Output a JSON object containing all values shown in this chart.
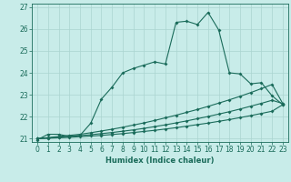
{
  "xlabel": "Humidex (Indice chaleur)",
  "background_color": "#c8ece9",
  "grid_color": "#aad4d0",
  "line_color": "#1a6b5a",
  "xlim": [
    -0.5,
    23.5
  ],
  "ylim": [
    20.85,
    27.15
  ],
  "yticks": [
    21,
    22,
    23,
    24,
    25,
    26,
    27
  ],
  "xticks": [
    0,
    1,
    2,
    3,
    4,
    5,
    6,
    7,
    8,
    9,
    10,
    11,
    12,
    13,
    14,
    15,
    16,
    17,
    18,
    19,
    20,
    21,
    22,
    23
  ],
  "series1_x": [
    0,
    1,
    2,
    3,
    4,
    5,
    6,
    7,
    8,
    9,
    10,
    11,
    12,
    13,
    14,
    15,
    16,
    17,
    18,
    19,
    20,
    21,
    22,
    23
  ],
  "series1_y": [
    20.95,
    21.2,
    21.2,
    21.1,
    21.15,
    21.7,
    22.8,
    23.35,
    24.0,
    24.2,
    24.35,
    24.5,
    24.4,
    26.3,
    26.35,
    26.2,
    26.75,
    25.95,
    24.0,
    23.95,
    23.5,
    23.55,
    22.95,
    22.55
  ],
  "series2_x": [
    0,
    1,
    2,
    3,
    4,
    5,
    6,
    7,
    8,
    9,
    10,
    11,
    12,
    13,
    14,
    15,
    16,
    17,
    18,
    19,
    20,
    21,
    22,
    23
  ],
  "series2_y": [
    21.0,
    21.05,
    21.1,
    21.15,
    21.2,
    21.27,
    21.35,
    21.43,
    21.52,
    21.62,
    21.72,
    21.83,
    21.95,
    22.07,
    22.2,
    22.33,
    22.47,
    22.62,
    22.77,
    22.93,
    23.1,
    23.28,
    23.47,
    22.6
  ],
  "series3_x": [
    0,
    1,
    2,
    3,
    4,
    5,
    6,
    7,
    8,
    9,
    10,
    11,
    12,
    13,
    14,
    15,
    16,
    17,
    18,
    19,
    20,
    21,
    22,
    23
  ],
  "series3_y": [
    21.0,
    21.03,
    21.07,
    21.1,
    21.14,
    21.18,
    21.23,
    21.28,
    21.34,
    21.4,
    21.47,
    21.55,
    21.63,
    21.72,
    21.81,
    21.91,
    22.01,
    22.12,
    22.23,
    22.35,
    22.48,
    22.61,
    22.75,
    22.6
  ],
  "series4_x": [
    0,
    1,
    2,
    3,
    4,
    5,
    6,
    7,
    8,
    9,
    10,
    11,
    12,
    13,
    14,
    15,
    16,
    17,
    18,
    19,
    20,
    21,
    22,
    23
  ],
  "series4_y": [
    21.0,
    21.02,
    21.04,
    21.06,
    21.09,
    21.12,
    21.15,
    21.19,
    21.23,
    21.28,
    21.33,
    21.38,
    21.44,
    21.5,
    21.57,
    21.64,
    21.71,
    21.79,
    21.87,
    21.96,
    22.05,
    22.15,
    22.25,
    22.55
  ]
}
